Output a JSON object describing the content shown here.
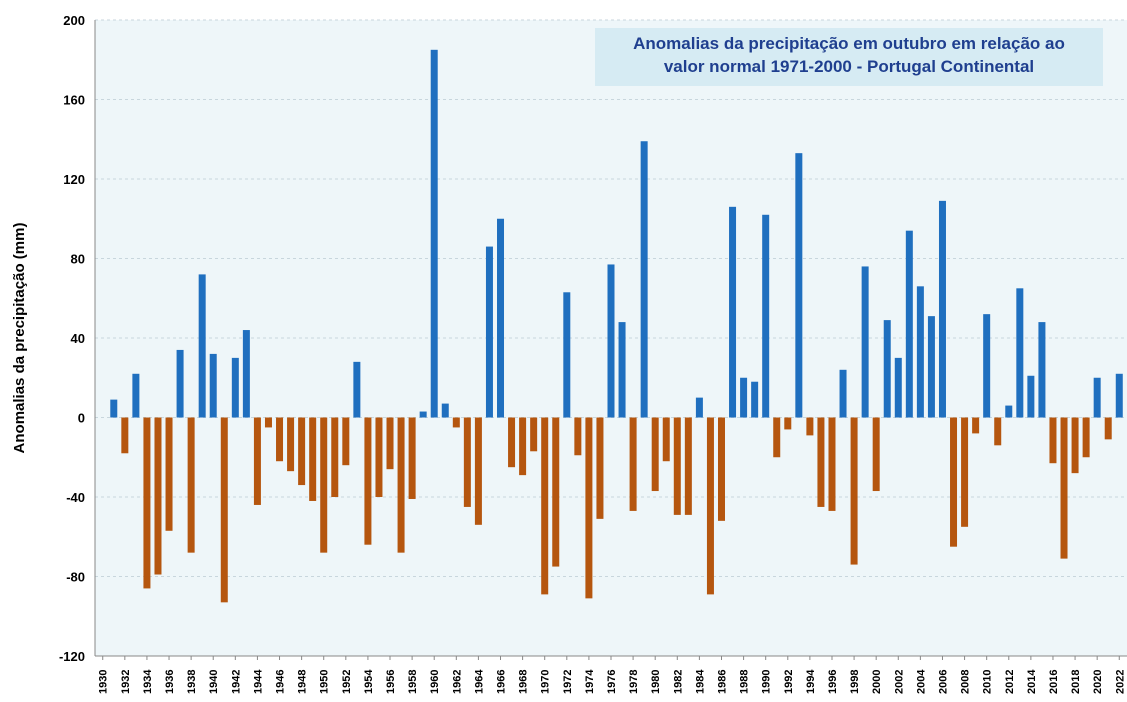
{
  "chart_data": {
    "type": "bar",
    "title": [
      "Anomalias da precipitação em outubro em relação ao",
      "valor normal  1971-2000 - Portugal Continental"
    ],
    "y_label": "Anomalias da precipitação (mm)",
    "positive_color": "#1f6fbf",
    "negative_color": "#b5560f",
    "x": [
      1931,
      1932,
      1933,
      1934,
      1935,
      1936,
      1937,
      1938,
      1939,
      1940,
      1941,
      1942,
      1943,
      1944,
      1945,
      1946,
      1947,
      1948,
      1949,
      1950,
      1951,
      1952,
      1953,
      1954,
      1955,
      1956,
      1957,
      1958,
      1959,
      1960,
      1961,
      1962,
      1963,
      1964,
      1965,
      1966,
      1967,
      1968,
      1969,
      1970,
      1971,
      1972,
      1973,
      1974,
      1975,
      1976,
      1977,
      1978,
      1979,
      1980,
      1981,
      1982,
      1983,
      1984,
      1985,
      1986,
      1987,
      1988,
      1989,
      1990,
      1991,
      1992,
      1993,
      1994,
      1995,
      1996,
      1997,
      1998,
      1999,
      2000,
      2001,
      2002,
      2003,
      2004,
      2005,
      2006,
      2007,
      2008,
      2009,
      2010,
      2011,
      2012,
      2013,
      2014,
      2015,
      2016,
      2017,
      2018,
      2019,
      2020,
      2021,
      2022
    ],
    "values": [
      9,
      -18,
      22,
      -86,
      -79,
      -57,
      34,
      -68,
      72,
      32,
      -93,
      30,
      44,
      -44,
      -5,
      -22,
      -27,
      -34,
      -42,
      -68,
      -40,
      -24,
      28,
      -64,
      -40,
      -26,
      -68,
      -41,
      3,
      185,
      7,
      -5,
      -45,
      -54,
      86,
      100,
      -25,
      -29,
      -17,
      -89,
      -75,
      63,
      -19,
      -91,
      -51,
      77,
      48,
      -47,
      139,
      -37,
      -22,
      -49,
      -49,
      10,
      -89,
      -52,
      106,
      20,
      18,
      102,
      -20,
      -6,
      133,
      -9,
      -45,
      -47,
      24,
      -74,
      76,
      -37,
      49,
      30,
      94,
      66,
      51,
      109,
      -65,
      -55,
      -8,
      52,
      -14,
      6,
      65,
      21,
      48,
      -23,
      -71,
      -28,
      -20,
      20,
      -11,
      22
    ],
    "xlim": [
      1929.3,
      2022.7
    ],
    "xticks": [
      1930,
      1932,
      1934,
      1936,
      1938,
      1940,
      1942,
      1944,
      1946,
      1948,
      1950,
      1952,
      1954,
      1956,
      1958,
      1960,
      1962,
      1964,
      1966,
      1968,
      1970,
      1972,
      1974,
      1976,
      1978,
      1980,
      1982,
      1984,
      1986,
      1988,
      1990,
      1992,
      1994,
      1996,
      1998,
      2000,
      2002,
      2004,
      2006,
      2008,
      2010,
      2012,
      2014,
      2016,
      2018,
      2020,
      2022
    ],
    "ylim": [
      -120,
      200
    ],
    "yticks": [
      -120,
      -80,
      -40,
      0,
      40,
      80,
      120,
      160,
      200
    ],
    "grid": true
  }
}
